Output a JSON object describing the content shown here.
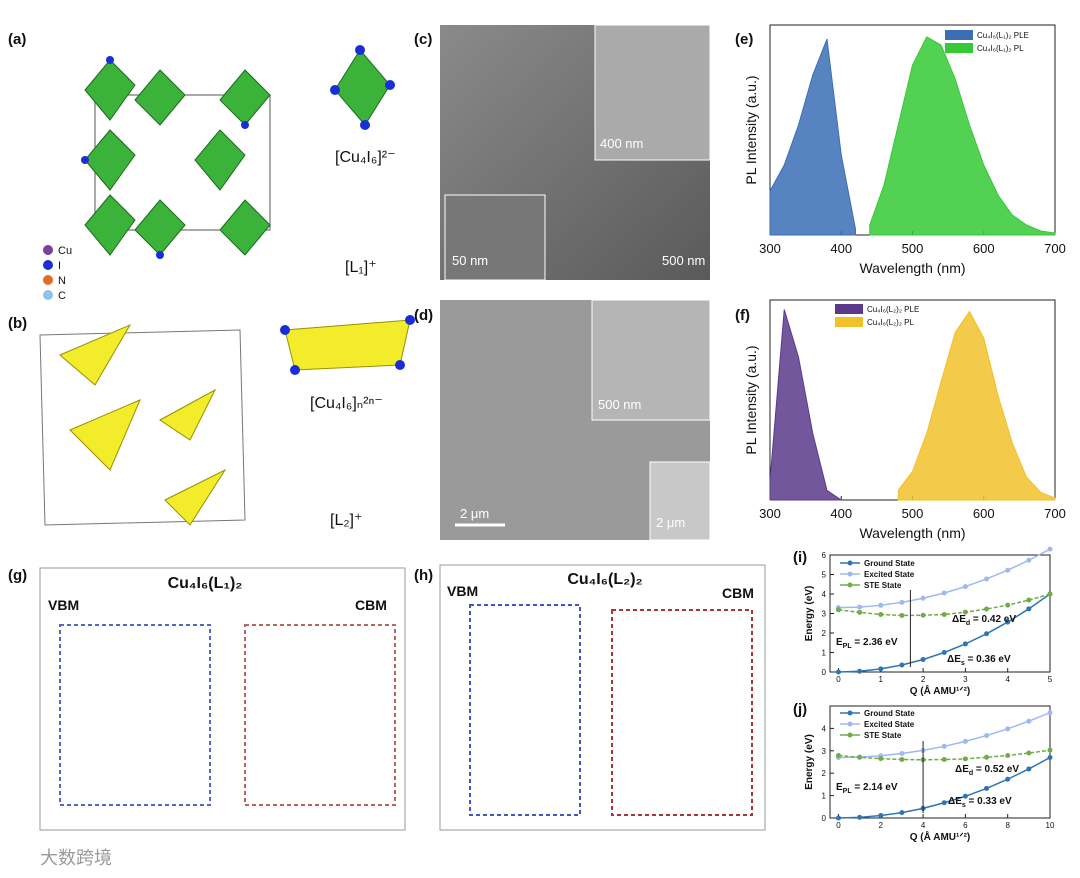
{
  "panels": {
    "a": {
      "label": "(a)",
      "legend": [
        "Cu",
        "I",
        "N",
        "C"
      ],
      "cluster": "[Cu₄I₆]²⁻",
      "ligand": "[L₁]⁺"
    },
    "b": {
      "label": "(b)",
      "cluster": "[Cu₄I₆]ₙ²ⁿ⁻",
      "ligand": "[L₂]⁺"
    },
    "c": {
      "label": "(c)",
      "scale_inset_top": "400 nm",
      "scale_inset_bottom": "50 nm",
      "scale_main": "500 nm"
    },
    "d": {
      "label": "(d)",
      "scale_inset_top": "500 nm",
      "scale_inset_bottom": "2 μm",
      "scale_main": "2 μm"
    },
    "e": {
      "label": "(e)",
      "type": "area",
      "xlabel": "Wavelength (nm)",
      "ylabel": "PL Intensity (a.u.)",
      "x": [
        300,
        320,
        340,
        360,
        380,
        400,
        420,
        440,
        460,
        480,
        500,
        520,
        540,
        560,
        580,
        600,
        620,
        640,
        660,
        680,
        700
      ],
      "xlim": [
        300,
        700
      ],
      "xticks": [
        300,
        400,
        500,
        600,
        700
      ],
      "ylim": [
        0,
        1.05
      ],
      "series": [
        {
          "name": "Cu₄I₆(L₁)₂ PLE",
          "color": "#3a6fb5",
          "values": [
            0.22,
            0.35,
            0.55,
            0.8,
            0.98,
            0.4,
            0.03,
            null,
            null,
            null,
            null,
            null,
            null,
            null,
            null,
            null,
            null,
            null,
            null,
            null,
            null
          ]
        },
        {
          "name": "Cu₄I₆(L₁)₂ PL",
          "color": "#35c935",
          "values": [
            null,
            null,
            null,
            null,
            null,
            null,
            null,
            0.05,
            0.25,
            0.55,
            0.85,
            0.99,
            0.95,
            0.78,
            0.55,
            0.35,
            0.2,
            0.1,
            0.05,
            0.02,
            0.01
          ]
        }
      ]
    },
    "f": {
      "label": "(f)",
      "type": "area",
      "xlabel": "Wavelength (nm)",
      "ylabel": "PL Intensity (a.u.)",
      "x": [
        300,
        320,
        340,
        360,
        380,
        400,
        420,
        440,
        460,
        480,
        500,
        520,
        540,
        560,
        580,
        600,
        620,
        640,
        660,
        680,
        700
      ],
      "xlim": [
        300,
        700
      ],
      "xticks": [
        300,
        400,
        500,
        600,
        700
      ],
      "ylim": [
        0,
        1.05
      ],
      "series": [
        {
          "name": "Cu₄I₆(L₂)₂ PLE",
          "color": "#5b3a8c",
          "values": [
            0.1,
            1,
            0.75,
            0.35,
            0.05,
            0,
            null,
            null,
            null,
            null,
            null,
            null,
            null,
            null,
            null,
            null,
            null,
            null,
            null,
            null,
            null
          ]
        },
        {
          "name": "Cu₄I₆(L₂)₂ PL",
          "color": "#f2c12a",
          "values": [
            null,
            null,
            null,
            null,
            null,
            null,
            null,
            null,
            null,
            0.05,
            0.15,
            0.35,
            0.62,
            0.88,
            0.99,
            0.85,
            0.55,
            0.3,
            0.12,
            0.04,
            0.01
          ]
        }
      ]
    },
    "g": {
      "label": "(g)",
      "title": "Cu₄I₆(L₁)₂",
      "left": "VBM",
      "right": "CBM"
    },
    "h": {
      "label": "(h)",
      "title": "Cu₄I₆(L₂)₂",
      "left": "VBM",
      "right": "CBM"
    },
    "i": {
      "label": "(i)",
      "type": "line",
      "xlabel": "Q (Å AMU¹ᐟ²)",
      "ylabel": "Energy (eV)",
      "x": [
        0,
        0.5,
        1,
        1.5,
        2,
        2.5,
        3,
        3.5,
        4,
        4.5,
        5
      ],
      "xlim": [
        -0.2,
        5
      ],
      "xticks": [
        0,
        1,
        2,
        3,
        4,
        5
      ],
      "ylim": [
        0,
        6
      ],
      "yticks": [
        0,
        1,
        2,
        3,
        4,
        5,
        6
      ],
      "series": [
        {
          "name": "Ground State",
          "color": "#2e75b6",
          "values": [
            0,
            0.04,
            0.16,
            0.36,
            0.64,
            1,
            1.44,
            1.96,
            2.56,
            3.24,
            4
          ]
        },
        {
          "name": "Excited State",
          "color": "#9db9f0",
          "values": [
            3.3,
            3.33,
            3.42,
            3.57,
            3.78,
            4.05,
            4.38,
            4.77,
            5.22,
            5.73,
            6.3
          ]
        },
        {
          "name": "STE State",
          "color": "#70ad47",
          "values": [
            3.19,
            3.06,
            2.95,
            2.9,
            2.91,
            2.95,
            3.07,
            3.23,
            3.43,
            3.69,
            3.99
          ]
        }
      ],
      "annotations": [
        {
          "main": "E",
          "sub": "PL",
          "rest": " = 2.36 eV"
        },
        {
          "main": "ΔE",
          "sub": "d",
          "rest": " = 0.42 eV"
        },
        {
          "main": "ΔE",
          "sub": "s",
          "rest": " = 0.36 eV"
        }
      ]
    },
    "j": {
      "label": "(j)",
      "type": "line",
      "xlabel": "Q (Å AMU¹ᐟ²)",
      "ylabel": "Energy (eV)",
      "x": [
        0,
        1,
        2,
        3,
        4,
        5,
        6,
        7,
        8,
        9,
        10
      ],
      "xlim": [
        -0.4,
        10
      ],
      "xticks": [
        0,
        2,
        4,
        6,
        8,
        10
      ],
      "ylim": [
        0,
        5
      ],
      "yticks": [
        0,
        1,
        2,
        3,
        4
      ],
      "series": [
        {
          "name": "Ground State",
          "color": "#2e75b6",
          "values": [
            0,
            0.03,
            0.11,
            0.24,
            0.43,
            0.68,
            0.97,
            1.32,
            1.73,
            2.19,
            2.7
          ]
        },
        {
          "name": "Excited State",
          "color": "#9db9f0",
          "values": [
            2.7,
            2.72,
            2.78,
            2.88,
            3.02,
            3.2,
            3.42,
            3.68,
            3.98,
            4.32,
            4.7
          ]
        },
        {
          "name": "STE State",
          "color": "#70ad47",
          "values": [
            2.79,
            2.71,
            2.65,
            2.61,
            2.6,
            2.61,
            2.64,
            2.71,
            2.79,
            2.9,
            3.03
          ]
        }
      ],
      "annotations": [
        {
          "main": "E",
          "sub": "PL",
          "rest": " = 2.14 eV"
        },
        {
          "main": "ΔE",
          "sub": "d",
          "rest": " = 0.52 eV"
        },
        {
          "main": "ΔE",
          "sub": "s",
          "rest": " = 0.33 eV"
        }
      ]
    }
  },
  "watermark": "大数跨境"
}
